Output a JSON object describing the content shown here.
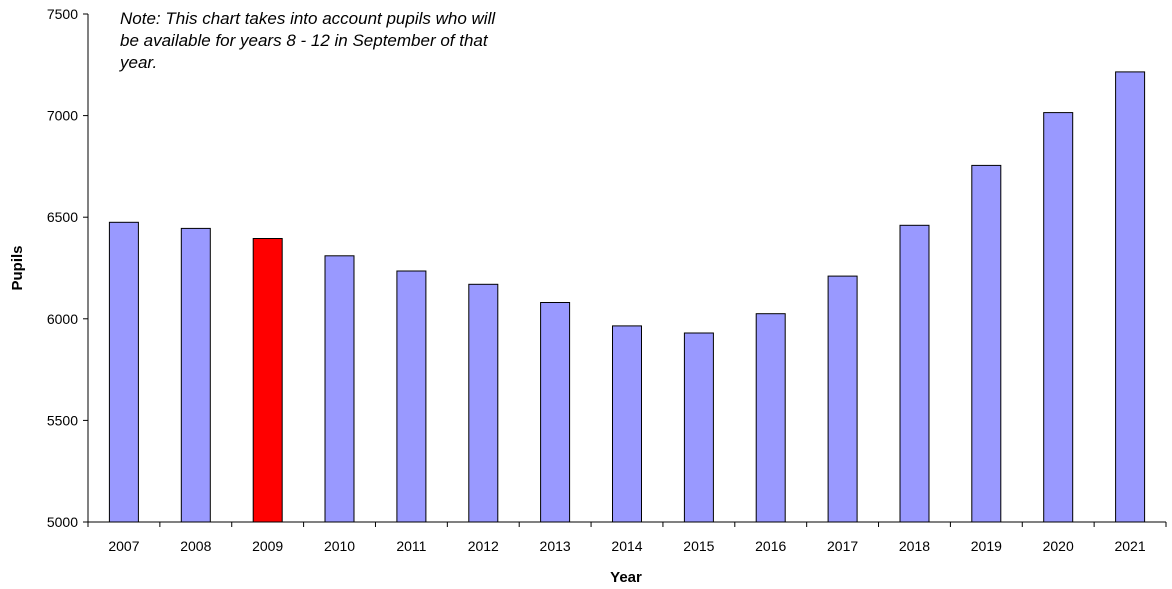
{
  "chart_data": {
    "type": "bar",
    "categories": [
      "2007",
      "2008",
      "2009",
      "2010",
      "2011",
      "2012",
      "2013",
      "2014",
      "2015",
      "2016",
      "2017",
      "2018",
      "2019",
      "2020",
      "2021"
    ],
    "values": [
      6475,
      6445,
      6395,
      6310,
      6235,
      6170,
      6080,
      5965,
      5930,
      6025,
      6210,
      6460,
      6755,
      7015,
      7215
    ],
    "bar_colors": [
      "#9999ff",
      "#9999ff",
      "#ff0000",
      "#9999ff",
      "#9999ff",
      "#9999ff",
      "#9999ff",
      "#9999ff",
      "#9999ff",
      "#9999ff",
      "#9999ff",
      "#9999ff",
      "#9999ff",
      "#9999ff",
      "#9999ff"
    ],
    "xlabel": "Year",
    "ylabel": "Pupils",
    "ylim": [
      5000,
      7500
    ],
    "yticks": [
      5000,
      5500,
      6000,
      6500,
      7000,
      7500
    ],
    "grid": false,
    "annotation": "Note: This chart takes into account pupils who will be available for years 8 - 12 in September of that year."
  }
}
